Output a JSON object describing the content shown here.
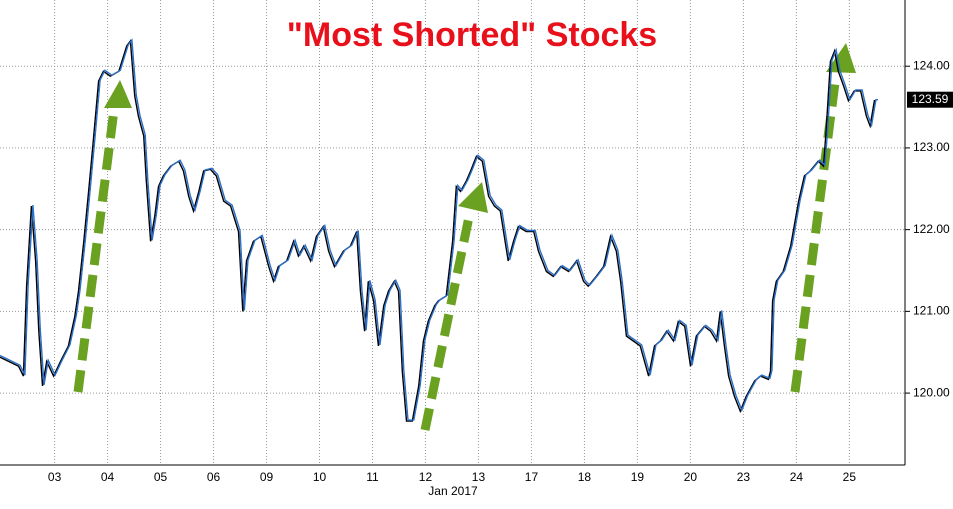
{
  "chart_data": {
    "type": "line",
    "title": "\"Most Shorted\" Stocks",
    "x_label": "Jan 2017",
    "xlim": [
      -0.53,
      16.55
    ],
    "xticks": [
      {
        "value": 0.5,
        "label": "03"
      },
      {
        "value": 1.5,
        "label": "04"
      },
      {
        "value": 2.5,
        "label": "05"
      },
      {
        "value": 3.5,
        "label": "06"
      },
      {
        "value": 4.5,
        "label": "09"
      },
      {
        "value": 5.5,
        "label": "10"
      },
      {
        "value": 6.5,
        "label": "11"
      },
      {
        "value": 7.5,
        "label": "12"
      },
      {
        "value": 8.5,
        "label": "13"
      },
      {
        "value": 9.5,
        "label": "17"
      },
      {
        "value": 10.5,
        "label": "18"
      },
      {
        "value": 11.5,
        "label": "19"
      },
      {
        "value": 12.5,
        "label": "20"
      },
      {
        "value": 13.5,
        "label": "23"
      },
      {
        "value": 14.5,
        "label": "24"
      },
      {
        "value": 15.5,
        "label": "25"
      }
    ],
    "ylim": [
      119.12,
      124.81
    ],
    "yticks": [
      {
        "value": 120,
        "label": "120.00"
      },
      {
        "value": 121,
        "label": "121.00"
      },
      {
        "value": 122,
        "label": "122.00"
      },
      {
        "value": 123,
        "label": "123.00"
      },
      {
        "value": 124,
        "label": "124.00"
      }
    ],
    "grid": true,
    "last_value": 123.59,
    "series": [
      {
        "color": "#2a6fc9",
        "x": [
          -0.53,
          -0.34,
          -0.15,
          -0.06,
          0.0,
          0.09,
          0.17,
          0.23,
          0.3,
          0.38,
          0.51,
          0.64,
          0.79,
          0.91,
          0.98,
          1.08,
          1.17,
          1.26,
          1.36,
          1.45,
          1.58,
          1.74,
          1.89,
          1.96,
          2.04,
          2.11,
          2.21,
          2.26,
          2.34,
          2.42,
          2.49,
          2.58,
          2.72,
          2.87,
          2.96,
          3.06,
          3.15,
          3.25,
          3.34,
          3.47,
          3.58,
          3.72,
          3.85,
          4.0,
          4.08,
          4.15,
          4.28,
          4.42,
          4.57,
          4.66,
          4.75,
          4.91,
          5.04,
          5.13,
          5.23,
          5.36,
          5.47,
          5.6,
          5.7,
          5.81,
          5.98,
          6.11,
          6.23,
          6.3,
          6.38,
          6.45,
          6.55,
          6.64,
          6.74,
          6.83,
          6.94,
          7.02,
          7.09,
          7.17,
          7.28,
          7.4,
          7.49,
          7.58,
          7.7,
          7.77,
          7.92,
          8.04,
          8.11,
          8.19,
          8.3,
          8.38,
          8.49,
          8.6,
          8.72,
          8.83,
          8.94,
          9.09,
          9.19,
          9.28,
          9.43,
          9.57,
          9.66,
          9.81,
          9.94,
          10.08,
          10.23,
          10.38,
          10.51,
          10.6,
          10.75,
          10.89,
          11.02,
          11.13,
          11.21,
          11.32,
          11.45,
          11.58,
          11.74,
          11.85,
          11.96,
          12.08,
          12.21,
          12.3,
          12.42,
          12.53,
          12.64,
          12.79,
          12.91,
          13.02,
          13.09,
          13.17,
          13.25,
          13.36,
          13.47,
          13.58,
          13.74,
          13.85,
          14.0,
          14.04,
          14.08,
          14.15,
          14.28,
          14.42,
          14.57,
          14.68,
          14.79,
          14.94,
          15.04,
          15.09,
          15.17,
          15.25,
          15.32,
          15.42,
          15.51,
          15.62,
          15.74,
          15.85,
          15.92,
          16.0,
          16.04
        ],
        "values": [
          120.46,
          120.4,
          120.34,
          120.22,
          121.32,
          122.3,
          121.63,
          120.77,
          120.1,
          120.4,
          120.22,
          120.4,
          120.59,
          120.95,
          121.26,
          121.87,
          122.48,
          123.1,
          123.83,
          123.95,
          123.89,
          123.95,
          124.26,
          124.32,
          123.65,
          123.4,
          123.16,
          122.61,
          121.87,
          122.18,
          122.54,
          122.67,
          122.79,
          122.85,
          122.73,
          122.42,
          122.24,
          122.48,
          122.73,
          122.75,
          122.67,
          122.36,
          122.3,
          121.99,
          121.01,
          121.63,
          121.87,
          121.93,
          121.56,
          121.38,
          121.56,
          121.63,
          121.87,
          121.69,
          121.81,
          121.63,
          121.93,
          122.05,
          121.75,
          121.56,
          121.75,
          121.81,
          121.99,
          121.26,
          120.77,
          121.38,
          121.14,
          120.59,
          121.08,
          121.26,
          121.38,
          121.26,
          120.28,
          119.67,
          119.67,
          120.1,
          120.65,
          120.89,
          121.08,
          121.14,
          121.2,
          121.87,
          122.54,
          122.48,
          122.61,
          122.73,
          122.91,
          122.85,
          122.42,
          122.3,
          122.24,
          121.63,
          121.87,
          122.05,
          121.99,
          121.99,
          121.75,
          121.5,
          121.44,
          121.56,
          121.5,
          121.63,
          121.38,
          121.32,
          121.44,
          121.56,
          121.93,
          121.75,
          121.38,
          120.71,
          120.65,
          120.59,
          120.22,
          120.59,
          120.65,
          120.77,
          120.65,
          120.89,
          120.83,
          120.34,
          120.71,
          120.83,
          120.77,
          120.65,
          121.01,
          120.59,
          120.22,
          119.97,
          119.79,
          119.97,
          120.16,
          120.22,
          120.18,
          120.28,
          121.14,
          121.38,
          121.5,
          121.81,
          122.36,
          122.67,
          122.73,
          122.85,
          122.79,
          123.22,
          124.07,
          124.2,
          123.95,
          123.77,
          123.59,
          123.71,
          123.71,
          123.4,
          123.28,
          123.59,
          123.59
        ]
      }
    ]
  }
}
